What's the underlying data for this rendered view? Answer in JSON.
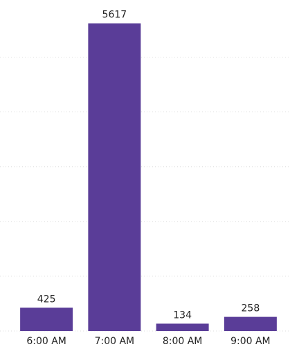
{
  "chart_data": {
    "type": "bar",
    "categories": [
      "6:00 AM",
      "7:00 AM",
      "8:00 AM",
      "9:00 AM"
    ],
    "values": [
      425,
      5617,
      134,
      258
    ],
    "color": "#5a3d98",
    "ylim": [
      0,
      6000
    ],
    "yticks": [
      0,
      1000,
      2000,
      3000,
      4000,
      5000
    ],
    "grid": true
  }
}
